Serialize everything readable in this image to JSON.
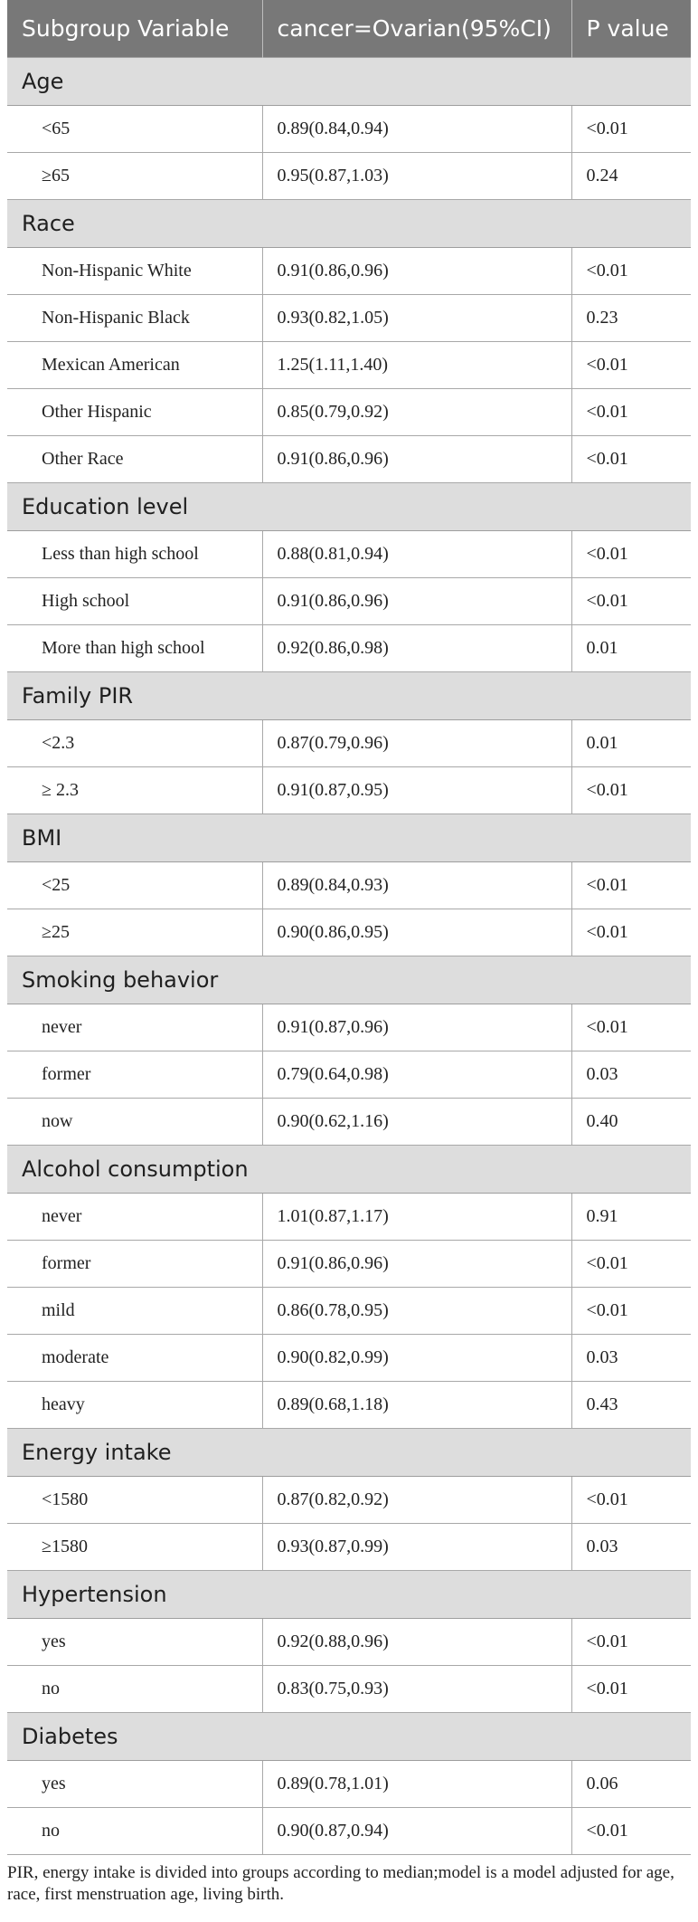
{
  "header": {
    "col1": "Subgroup Variable",
    "col2": "cancer=Ovarian(95%CI)",
    "col3": "P value"
  },
  "groups": [
    {
      "label": "Age",
      "rows": [
        {
          "sub": "<65",
          "ci": "0.89(0.84,0.94)",
          "p": "<0.01"
        },
        {
          "sub": "≥65",
          "ci": "0.95(0.87,1.03)",
          "p": "0.24"
        }
      ]
    },
    {
      "label": "Race",
      "rows": [
        {
          "sub": "Non-Hispanic White",
          "ci": "0.91(0.86,0.96)",
          "p": "<0.01"
        },
        {
          "sub": "Non-Hispanic Black",
          "ci": "0.93(0.82,1.05)",
          "p": "0.23"
        },
        {
          "sub": "Mexican American",
          "ci": "1.25(1.11,1.40)",
          "p": "<0.01"
        },
        {
          "sub": "Other Hispanic",
          "ci": "0.85(0.79,0.92)",
          "p": "<0.01"
        },
        {
          "sub": "Other Race",
          "ci": "0.91(0.86,0.96)",
          "p": "<0.01"
        }
      ]
    },
    {
      "label": "Education level",
      "rows": [
        {
          "sub": "Less than high school",
          "ci": "0.88(0.81,0.94)",
          "p": "<0.01"
        },
        {
          "sub": "High school",
          "ci": "0.91(0.86,0.96)",
          "p": "<0.01"
        },
        {
          "sub": "More than high school",
          "ci": "0.92(0.86,0.98)",
          "p": "0.01"
        }
      ]
    },
    {
      "label": "Family PIR",
      "rows": [
        {
          "sub": "<2.3",
          "ci": "0.87(0.79,0.96)",
          "p": "0.01"
        },
        {
          "sub": "≥ 2.3",
          "ci": "0.91(0.87,0.95)",
          "p": "<0.01"
        }
      ]
    },
    {
      "label": "BMI",
      "rows": [
        {
          "sub": "<25",
          "ci": "0.89(0.84,0.93)",
          "p": "<0.01"
        },
        {
          "sub": "≥25",
          "ci": "0.90(0.86,0.95)",
          "p": "<0.01"
        }
      ]
    },
    {
      "label": "Smoking behavior",
      "rows": [
        {
          "sub": "never",
          "ci": "0.91(0.87,0.96)",
          "p": "<0.01"
        },
        {
          "sub": "former",
          "ci": "0.79(0.64,0.98)",
          "p": "0.03"
        },
        {
          "sub": "now",
          "ci": "0.90(0.62,1.16)",
          "p": "0.40"
        }
      ]
    },
    {
      "label": "Alcohol consumption",
      "rows": [
        {
          "sub": "never",
          "ci": "1.01(0.87,1.17)",
          "p": "0.91"
        },
        {
          "sub": "former",
          "ci": "0.91(0.86,0.96)",
          "p": "<0.01"
        },
        {
          "sub": "mild",
          "ci": "0.86(0.78,0.95)",
          "p": "<0.01"
        },
        {
          "sub": "moderate",
          "ci": "0.90(0.82,0.99)",
          "p": "0.03"
        },
        {
          "sub": "heavy",
          "ci": "0.89(0.68,1.18)",
          "p": "0.43"
        }
      ]
    },
    {
      "label": "Energy intake",
      "rows": [
        {
          "sub": "<1580",
          "ci": "0.87(0.82,0.92)",
          "p": "<0.01"
        },
        {
          "sub": "≥1580",
          "ci": "0.93(0.87,0.99)",
          "p": "0.03"
        }
      ]
    },
    {
      "label": "Hypertension",
      "rows": [
        {
          "sub": "yes",
          "ci": "0.92(0.88,0.96)",
          "p": "<0.01"
        },
        {
          "sub": "no",
          "ci": "0.83(0.75,0.93)",
          "p": "<0.01"
        }
      ]
    },
    {
      "label": "Diabetes",
      "rows": [
        {
          "sub": "yes",
          "ci": "0.89(0.78,1.01)",
          "p": "0.06"
        },
        {
          "sub": "no",
          "ci": "0.90(0.87,0.94)",
          "p": "<0.01"
        }
      ]
    }
  ],
  "footnote": "PIR, energy intake is divided into groups according to median;model is a model adjusted for age, race, first menstruation age, living birth."
}
